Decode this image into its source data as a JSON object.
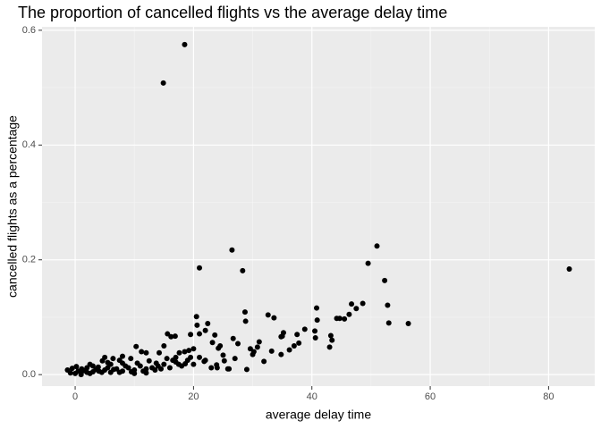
{
  "chart_data": {
    "type": "scatter",
    "title": "The proportion of cancelled flights vs the average delay time",
    "x_label": "average delay time",
    "y_label": "cancelled flights as a percentage",
    "color": "#000000",
    "xlim": [
      -5.6,
      87.8
    ],
    "ylim": [
      -0.02,
      0.606
    ],
    "xticks": [
      0,
      20,
      40,
      60,
      80
    ],
    "yticks": [
      {
        "value": 0,
        "label": "0.0"
      },
      0.2,
      0.4,
      0.6
    ],
    "x_minor_ticks": [
      10,
      30,
      50,
      70
    ],
    "y_minor_ticks": [
      0.1,
      0.3,
      0.5
    ],
    "grid": true,
    "x": [
      18.5,
      14.9,
      26.5,
      51,
      21,
      28.3,
      83.5,
      49.5,
      52.3,
      52.8,
      53,
      56.3,
      46.7,
      48.6,
      47.5,
      46.3,
      45.5,
      44.7,
      44.2,
      43.2,
      43,
      43.4,
      40.8,
      40.9,
      40.5,
      40.6,
      38.8,
      37.5,
      37.8,
      37,
      36.2,
      35.2,
      35,
      34.8,
      34.8,
      33.6,
      33.2,
      32.6,
      31.9,
      31.1,
      30.8,
      30.2,
      30,
      29.6,
      29,
      28.8,
      28.7,
      27.5,
      26.7,
      25.8,
      25.2,
      25,
      24.5,
      24.2,
      23.9,
      23.2,
      23.6,
      22.4,
      22,
      21.8,
      21,
      20.5,
      20.6,
      19.5,
      19.2,
      18.6,
      20,
      17.6,
      16.9,
      16.2,
      15.6,
      15,
      17,
      14.2,
      13.7,
      12,
      11.2,
      10.3,
      9.4,
      8,
      7.5,
      6.4,
      5.5,
      5,
      4.6,
      3.9,
      2.5,
      1.1,
      0.2,
      -1.3,
      -0.8,
      0,
      1,
      2,
      3,
      4,
      5,
      6,
      7,
      8,
      9,
      10,
      11,
      12,
      13,
      14,
      15,
      16,
      17,
      18,
      19,
      20,
      21,
      22,
      23,
      24,
      26,
      27,
      0.5,
      1.5,
      2.5,
      3.5,
      4.5,
      5.5,
      6.5,
      7.5,
      8.5,
      9.5,
      10.5,
      11.5,
      12.5,
      13.5,
      14.5,
      15.5,
      16.5,
      17.5,
      18.5,
      19.5,
      2,
      3,
      6,
      8,
      10,
      12,
      -0.5,
      1
    ],
    "values": [
      0.575,
      0.508,
      0.217,
      0.224,
      0.186,
      0.181,
      0.184,
      0.194,
      0.164,
      0.121,
      0.09,
      0.089,
      0.123,
      0.124,
      0.115,
      0.105,
      0.097,
      0.098,
      0.098,
      0.068,
      0.048,
      0.06,
      0.116,
      0.095,
      0.076,
      0.064,
      0.079,
      0.07,
      0.055,
      0.05,
      0.043,
      0.073,
      0.067,
      0.066,
      0.035,
      0.099,
      0.041,
      0.104,
      0.023,
      0.057,
      0.048,
      0.04,
      0.035,
      0.045,
      0.009,
      0.093,
      0.109,
      0.054,
      0.063,
      0.01,
      0.024,
      0.034,
      0.05,
      0.046,
      0.017,
      0.056,
      0.069,
      0.089,
      0.077,
      0.023,
      0.071,
      0.101,
      0.086,
      0.07,
      0.042,
      0.019,
      0.045,
      0.038,
      0.067,
      0.066,
      0.071,
      0.05,
      0.03,
      0.038,
      0.02,
      0.038,
      0.04,
      0.049,
      0.028,
      0.032,
      0.025,
      0.028,
      0.021,
      0.03,
      0.024,
      0.013,
      0.018,
      0.01,
      0.014,
      0.008,
      0.003,
      0.002,
      0.003,
      0.004,
      0.005,
      0.006,
      0.008,
      0.004,
      0.01,
      0.006,
      0.012,
      0.008,
      0.015,
      0.01,
      0.012,
      0.015,
      0.018,
      0.012,
      0.022,
      0.015,
      0.025,
      0.018,
      0.03,
      0.025,
      0.012,
      0.012,
      0.01,
      0.028,
      0.006,
      0.007,
      0.002,
      0.009,
      0.004,
      0.012,
      0.009,
      0.004,
      0.015,
      0.005,
      0.02,
      0.006,
      0.024,
      0.008,
      0.01,
      0.028,
      0.025,
      0.018,
      0.04,
      0.03,
      0.012,
      0.015,
      0.018,
      0.02,
      0.002,
      0.003,
      0.011,
      0
    ]
  }
}
